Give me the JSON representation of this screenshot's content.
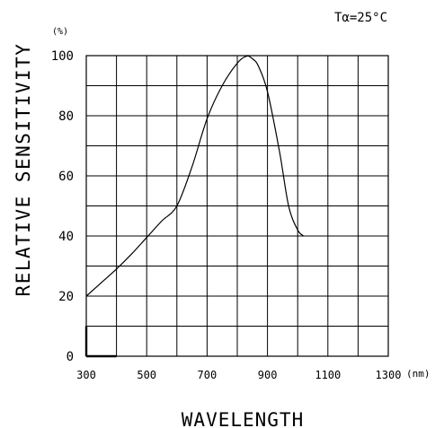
{
  "chart_data": {
    "type": "line",
    "title": "",
    "condition": "Tα=25°C",
    "xlabel": "WAVELENGTH",
    "ylabel": "RELATIVE SENSITIVITY",
    "xunit": "(nm)",
    "yunit": "(%)",
    "xlim": [
      300,
      1300
    ],
    "ylim": [
      0,
      100
    ],
    "xtick_labels": [
      "300",
      "500",
      "700",
      "900",
      "1100",
      "1300"
    ],
    "ytick_labels": [
      "0",
      "20",
      "40",
      "60",
      "80",
      "100"
    ],
    "grid": true,
    "series": [
      {
        "x": [
          300,
          350,
          400,
          450,
          500,
          550,
          600,
          650,
          700,
          750,
          800,
          830,
          850,
          870,
          900,
          940,
          970,
          1000,
          1020
        ],
        "y": [
          20,
          24.5,
          29,
          34,
          39.5,
          45,
          50,
          63,
          79,
          90,
          97.5,
          99.8,
          99,
          96.5,
          88,
          68,
          50,
          42,
          40
        ]
      }
    ]
  }
}
